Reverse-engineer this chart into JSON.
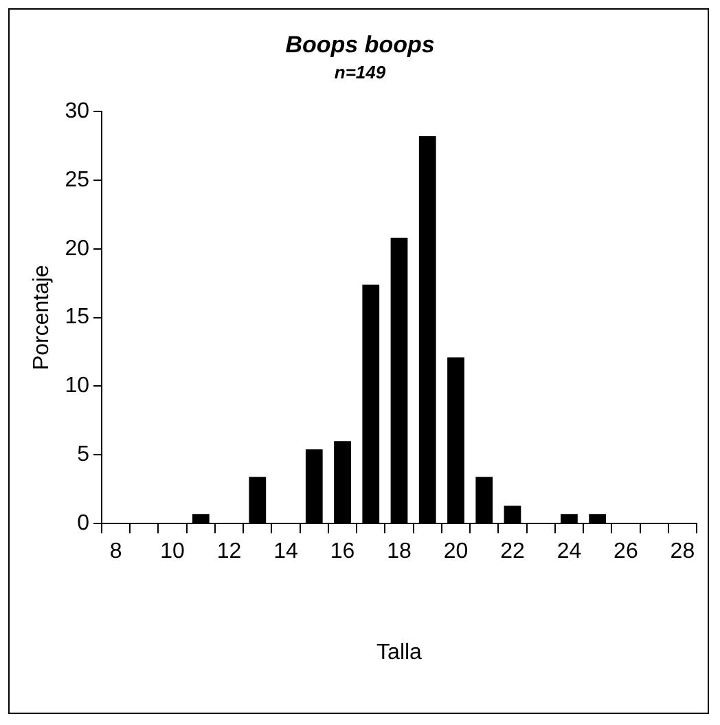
{
  "chart_data": {
    "type": "bar",
    "title": "Boops boops",
    "subtitle": "n=149",
    "xlabel": "Talla",
    "ylabel": "Porcentaje",
    "categories": [
      "8",
      null,
      "10",
      null,
      "12",
      null,
      "14",
      null,
      "16",
      null,
      "18",
      null,
      "20",
      null,
      "22",
      null,
      "24",
      null,
      "26",
      null,
      "28"
    ],
    "values": [
      0,
      0,
      0,
      0.7,
      0,
      3.4,
      0,
      5.4,
      6.0,
      17.4,
      20.8,
      28.2,
      12.1,
      3.4,
      1.3,
      0,
      0.7,
      0.7,
      0,
      0,
      0
    ],
    "color": "#000000",
    "ylim": [
      0,
      30
    ],
    "yticks": [
      0,
      5,
      10,
      15,
      20,
      25,
      30
    ],
    "grid": false,
    "legend": false
  }
}
